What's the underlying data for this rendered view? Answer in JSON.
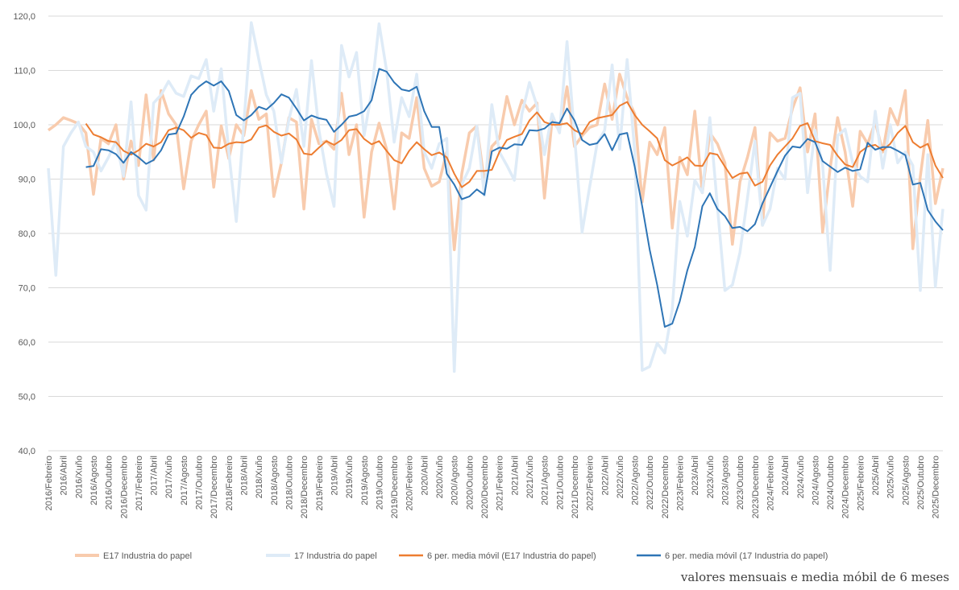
{
  "chart_data": {
    "type": "line",
    "footer": "valores mensuais e media móbil de 6 meses",
    "categories": [
      "2016/Febreiro",
      null,
      "2016/Abril",
      null,
      "2016/Xuño",
      null,
      "2016/Agosto",
      null,
      "2016/Outubro",
      null,
      "2016/Decembro",
      null,
      "2017/Febreiro",
      null,
      "2017/Abril",
      null,
      "2017/Xuño",
      null,
      "2017/Agosto",
      null,
      "2017/Outubro",
      null,
      "2017/Decembro",
      null,
      "2018/Febreiro",
      null,
      "2018/Abril",
      null,
      "2018/Xuño",
      null,
      "2018/Agosto",
      null,
      "2018/Outubro",
      null,
      "2018/Decembro",
      null,
      "2019/Febreiro",
      null,
      "2019/Abril",
      null,
      "2019/Xuño",
      null,
      "2019/Agosto",
      null,
      "2019/Outubro",
      null,
      "2019/Decembro",
      null,
      "2020/Febreiro",
      null,
      "2020/Abril",
      null,
      "2020/Xuño",
      null,
      "2020/Agosto",
      null,
      "2020/Outubro",
      null,
      "2020/Decembro",
      null,
      "2021/Febreiro",
      null,
      "2021/Abril",
      null,
      "2021/Xuño",
      null,
      "2021/Agosto",
      null,
      "2021/Outubro",
      null,
      "2021/Decembro",
      null,
      "2022/Febreiro",
      null,
      "2022/Abril",
      null,
      "2022/Xuño",
      null,
      "2022/Agosto",
      null,
      "2022/Outubro",
      null,
      "2022/Decembro",
      null,
      "2023/Febreiro",
      null,
      "2023/Abril",
      null,
      "2023/Xuño",
      null,
      "2023/Agosto",
      null,
      "2023/Outubro",
      null,
      "2023/Decembro",
      null,
      "2024/Febreiro",
      null,
      "2024/Abril",
      null,
      "2024/Xuño",
      null,
      "2024/Agosto",
      null,
      "2024/Outubro",
      null,
      "2024/Decembro",
      null,
      "2025/Febreiro",
      null,
      "2025/Abril",
      null,
      "2025/Xuño",
      null,
      "2025/Agosto",
      null,
      "2025/Outubro",
      null,
      "2025/Decembro",
      null
    ],
    "series": [
      {
        "name": "E17 Industria do papel",
        "color": "#f8cbad",
        "width": 3.5,
        "values": [
          99.0,
          100,
          101.3,
          100.8,
          100.2,
          98.5,
          87.2,
          97.5,
          96.5,
          100,
          90,
          97,
          92.5,
          105.5,
          93.5,
          106.3,
          102,
          100,
          88.2,
          97,
          100,
          102.5,
          88.5,
          99.8,
          93.8,
          100,
          98,
          106.3,
          101,
          102,
          86.8,
          93,
          101.3,
          100.5,
          84.5,
          101,
          96.5,
          97,
          95.5,
          105.8,
          94.5,
          100,
          83,
          95,
          100.3,
          95.5,
          84.5,
          98.5,
          97.5,
          105,
          92,
          88.7,
          89.5,
          95,
          77,
          91,
          98.5,
          99.8,
          89.5,
          96,
          97.5,
          105.2,
          100,
          104.5,
          102.5,
          104,
          86.5,
          100.8,
          99,
          107,
          96,
          98,
          99.5,
          100,
          107.5,
          101,
          109.3,
          105,
          102,
          85.8,
          96.8,
          94.5,
          99.5,
          81,
          94,
          90.8,
          102.5,
          87.5,
          98.5,
          96.5,
          93,
          78,
          89.5,
          94,
          99.5,
          81.5,
          98.5,
          97,
          97.5,
          103,
          106.8,
          95,
          102,
          80.2,
          92,
          101.3,
          95,
          85,
          98.8,
          96.5,
          100.5,
          95,
          103,
          100,
          106.3,
          77.2,
          90.5,
          100.8,
          85.5,
          92
        ]
      },
      {
        "name": "17 Industria do papel",
        "color": "#deebf7",
        "width": 3.5,
        "values": [
          92,
          72.3,
          96,
          98.5,
          100.5,
          96,
          95,
          91.5,
          94,
          97,
          90.5,
          104.2,
          87,
          84.3,
          104,
          105.5,
          108,
          105.8,
          105.2,
          109,
          108.5,
          112,
          102.5,
          110.3,
          95,
          82.2,
          100,
          118.8,
          112,
          105.5,
          102.5,
          93,
          101,
          106.5,
          96,
          111.8,
          99,
          91,
          85,
          114.6,
          108.8,
          113.3,
          98,
          106,
          118.6,
          110,
          96.8,
          105,
          101.5,
          109.3,
          95,
          92,
          96.5,
          97.5,
          54.6,
          89,
          92,
          99.8,
          87,
          103.7,
          95,
          92.5,
          89.8,
          102,
          107.8,
          103.5,
          94.5,
          102,
          98.5,
          115.3,
          98,
          80.2,
          88.5,
          96.5,
          99,
          111,
          95.5,
          112,
          95,
          54.8,
          55.5,
          59.8,
          58,
          66,
          85.9,
          79.5,
          89.8,
          87.5,
          101.3,
          85,
          69.5,
          70.5,
          76.5,
          86.5,
          97,
          81.5,
          84.5,
          92,
          90,
          105,
          105.8,
          87.5,
          99,
          92.5,
          73.2,
          98,
          99.2,
          93,
          90.5,
          89.5,
          102.5,
          92,
          100,
          93,
          95,
          92.5,
          69.5,
          94.5,
          70.2,
          84.5
        ]
      },
      {
        "name": "6 per. media móvil (E17 Industria do papel)",
        "color": "#ed7d31",
        "width": 2,
        "values": [
          null,
          null,
          null,
          null,
          null,
          100.2,
          98.2,
          97.7,
          97,
          96.8,
          95.2,
          94.5,
          95.3,
          96.5,
          96,
          96.8,
          99,
          99.5,
          99,
          97.6,
          98.5,
          98.1,
          95.8,
          95.7,
          96.5,
          96.8,
          96.7,
          97.3,
          99.5,
          99.9,
          98.7,
          98,
          98.4,
          97.3,
          94.7,
          94.5,
          95.8,
          97,
          96.3,
          97.2,
          99,
          99.2,
          97.4,
          96.4,
          97,
          95.2,
          93.5,
          92.9,
          95.2,
          96.8,
          95.5,
          94.4,
          94.9,
          94,
          91,
          88.5,
          89.5,
          91.5,
          91.5,
          91.7,
          95,
          97.2,
          97.8,
          98.3,
          100.8,
          102.3,
          100.5,
          100,
          100,
          100.3,
          99,
          98.3,
          100.5,
          101.2,
          101.5,
          101.8,
          103.5,
          104.2,
          101.8,
          100,
          98.8,
          97.5,
          93.5,
          92.5,
          93.2,
          94,
          92.5,
          92.4,
          94.8,
          94.5,
          92.3,
          90.2,
          91,
          91.2,
          88.8,
          89.5,
          92.5,
          94.5,
          96,
          97.5,
          99.8,
          100.3,
          97,
          96.6,
          96.3,
          94.3,
          92.7,
          92.2,
          95,
          96,
          96.3,
          95.3,
          96.5,
          98.5,
          99.8,
          96.8,
          95.8,
          96.5,
          92.5,
          90.2
        ]
      },
      {
        "name": "6 per. media móvil (17 Industria do papel)",
        "color": "#2e75b6",
        "width": 2,
        "values": [
          null,
          null,
          null,
          null,
          null,
          92.2,
          92.4,
          95.5,
          95.3,
          94.6,
          93,
          95,
          94,
          92.8,
          93.5,
          95.3,
          98.2,
          98.4,
          101.5,
          105.5,
          107,
          108,
          107.2,
          108,
          106.2,
          101.8,
          100.8,
          101.8,
          103.3,
          102.8,
          104,
          105.6,
          105,
          103,
          100.8,
          101.7,
          101.2,
          100.9,
          98.7,
          100,
          101.5,
          101.8,
          102.5,
          104.5,
          110.3,
          109.8,
          107.8,
          106.5,
          106.2,
          107,
          102.5,
          99.6,
          99.6,
          91,
          89,
          86.3,
          86.8,
          88.1,
          87.1,
          95.1,
          95.8,
          95.6,
          96.4,
          96.3,
          99,
          98.9,
          99.3,
          100.5,
          100.3,
          103,
          100.8,
          97.2,
          96.3,
          96.6,
          98.3,
          95.3,
          98.2,
          98.5,
          92.3,
          85,
          77,
          70.5,
          62.8,
          63.4,
          67.5,
          73.2,
          77.5,
          85,
          87.4,
          84.5,
          83.2,
          81,
          81.2,
          80.4,
          81.7,
          85.5,
          88.5,
          91.5,
          94.3,
          96,
          95.8,
          97.4,
          96.8,
          93.3,
          92.3,
          91.3,
          92.1,
          91.5,
          91.8,
          96.7,
          95.4,
          95.9,
          95.9,
          95.2,
          94.4,
          89,
          89.3,
          84.3,
          82.2,
          80.6
        ]
      }
    ],
    "ylim": [
      40,
      120
    ],
    "yticks": [
      {
        "value": 40,
        "label": "40,0"
      },
      {
        "value": 50,
        "label": "50,0"
      },
      {
        "value": 60,
        "label": "60,0"
      },
      {
        "value": 70,
        "label": "70,0"
      },
      {
        "value": 80,
        "label": "80,0"
      },
      {
        "value": 90,
        "label": "90,0"
      },
      {
        "value": 100,
        "label": "100,0"
      },
      {
        "value": 110,
        "label": "110,0"
      },
      {
        "value": 120,
        "label": "120,0"
      }
    ],
    "grid": true
  }
}
